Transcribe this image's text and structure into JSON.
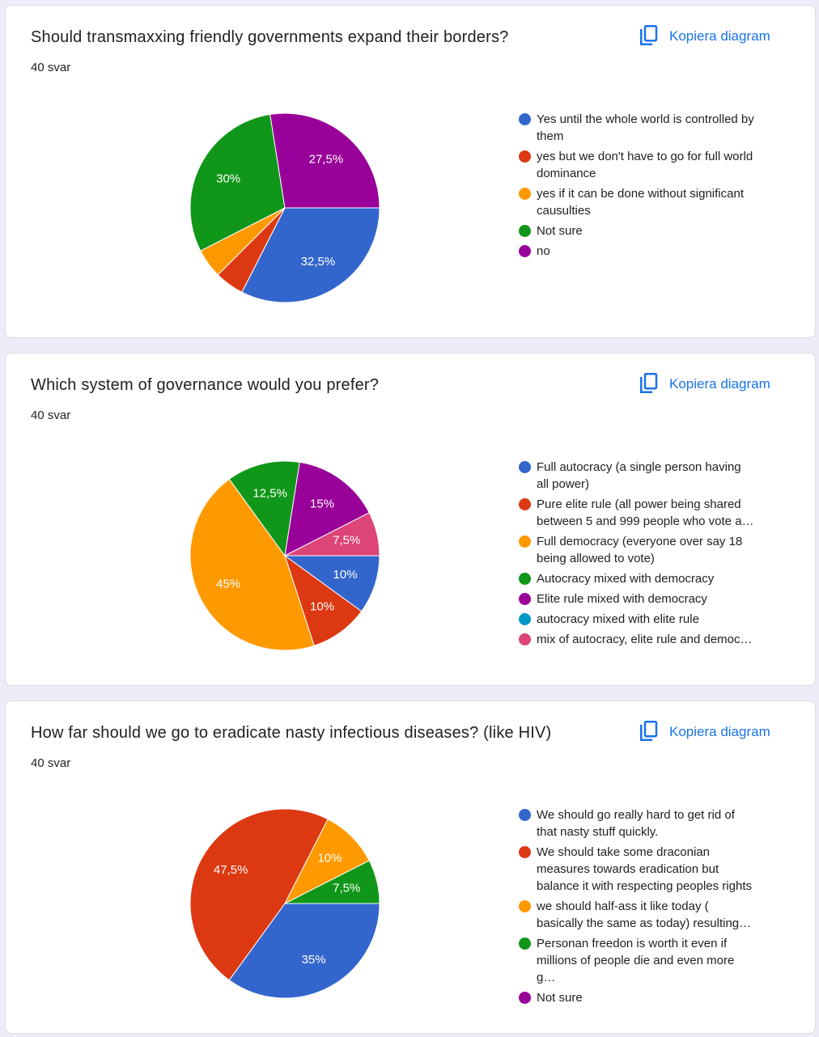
{
  "chart_data": [
    {
      "type": "pie",
      "title": "Should transmaxxing friendly governments expand their borders?",
      "subtitle": "40 svar",
      "button": "Kopiera diagram",
      "categories": [
        "Yes until the whole world is controlled by them",
        "yes but we don't have to go for full world dominance",
        "yes if it can be done without significant causulties",
        "Not sure",
        "no"
      ],
      "values": [
        32.5,
        5,
        5,
        30,
        27.5
      ],
      "value_labels": [
        "32,5%",
        null,
        null,
        "30%",
        "27,5%"
      ],
      "colors": [
        "#3366cc",
        "#dc3912",
        "#ff9900",
        "#109618",
        "#990099"
      ]
    },
    {
      "type": "pie",
      "title": "Which system of governance would you prefer?",
      "subtitle": "40 svar",
      "button": "Kopiera diagram",
      "categories": [
        "Full autocracy (a single person having all power)",
        "Pure elite rule (all power being shared between 5 and 999 people who vote a…",
        "Full democracy (everyone over say 18 being allowed to vote)",
        "Autocracy mixed with democracy",
        "Elite rule mixed with democracy",
        "autocracy mixed with elite rule",
        "mix of autocracy, elite rule and democ…"
      ],
      "values": [
        10,
        10,
        45,
        12.5,
        15,
        0,
        7.5
      ],
      "value_labels": [
        "10%",
        "10%",
        "45%",
        "12,5%",
        "15%",
        null,
        "7,5%"
      ],
      "colors": [
        "#3366cc",
        "#dc3912",
        "#ff9900",
        "#109618",
        "#990099",
        "#0099c6",
        "#dd4477"
      ]
    },
    {
      "type": "pie",
      "title": "How far should we go to eradicate nasty infectious diseases? (like HIV)",
      "subtitle": "40 svar",
      "button": "Kopiera diagram",
      "categories": [
        "We should go really hard to get rid of that nasty stuff quickly.",
        "We should take some draconian measures towards eradication but balance it with respecting peoples rights",
        "we should half-ass it like today ( basically the same as today) resulting…",
        "Personan freedon is worth it even if millions of people die and even more g…",
        "Not sure"
      ],
      "values": [
        35,
        47.5,
        10,
        7.5,
        0
      ],
      "value_labels": [
        "35%",
        "47,5%",
        "10%",
        "7,5%",
        null
      ],
      "colors": [
        "#3366cc",
        "#dc3912",
        "#ff9900",
        "#109618",
        "#990099"
      ]
    }
  ]
}
